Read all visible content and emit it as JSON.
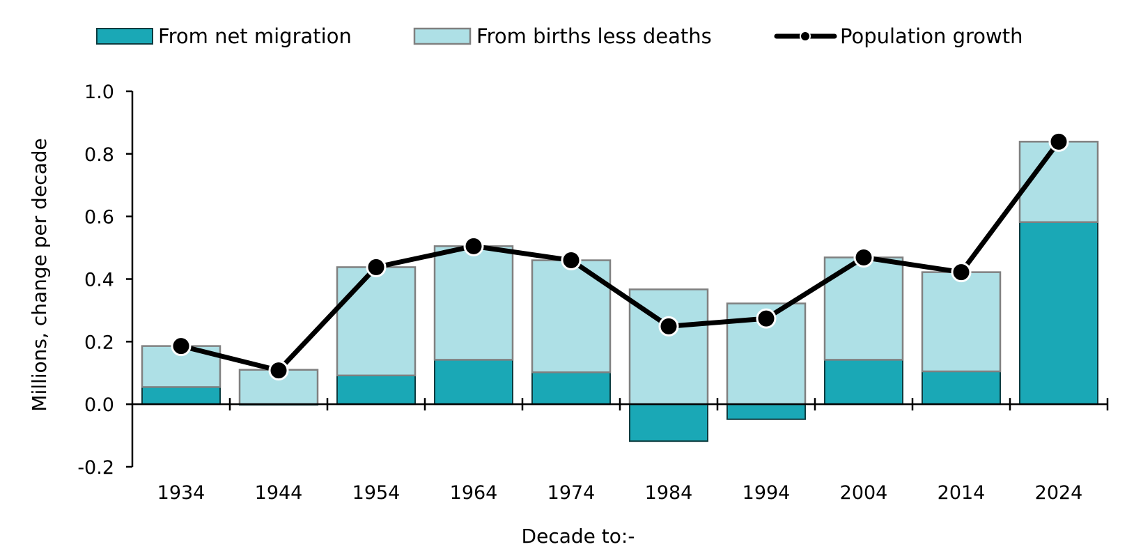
{
  "chart_data": {
    "type": "bar",
    "stacked": true,
    "categories": [
      "1934",
      "1944",
      "1954",
      "1964",
      "1974",
      "1984",
      "1994",
      "2004",
      "2014",
      "2024"
    ],
    "series": [
      {
        "name": "From net migration",
        "kind": "bar",
        "color": "#1aa8b6",
        "values": [
          0.055,
          -0.002,
          0.092,
          0.142,
          0.102,
          -0.118,
          -0.048,
          0.142,
          0.105,
          0.582
        ]
      },
      {
        "name": "From births less deaths",
        "kind": "bar",
        "color": "#aee0e6",
        "values": [
          0.131,
          0.11,
          0.346,
          0.363,
          0.358,
          0.367,
          0.322,
          0.327,
          0.317,
          0.257
        ]
      },
      {
        "name": "Population growth",
        "kind": "line",
        "color": "#000000",
        "values": [
          0.186,
          0.108,
          0.438,
          0.505,
          0.46,
          0.249,
          0.274,
          0.469,
          0.422,
          0.839
        ]
      }
    ],
    "ylim": [
      -0.2,
      1.0
    ],
    "yticks": [
      "-0.2",
      "0.0",
      "0.2",
      "0.4",
      "0.6",
      "0.8",
      "1.0"
    ],
    "xlabel": "Decade to:-",
    "ylabel": "Millions, change per decade",
    "legend_position": "top",
    "grid": false
  }
}
